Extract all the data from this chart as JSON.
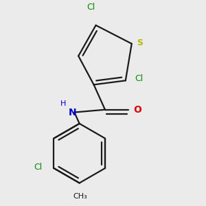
{
  "background_color": "#ebebeb",
  "bond_color": "#1a1a1a",
  "S_color": "#b8b800",
  "N_color": "#0000cc",
  "O_color": "#dd0000",
  "Cl_color": "#008800",
  "C_color": "#1a1a1a",
  "line_width": 1.6,
  "dbo": 0.018,
  "fig_width": 3.0,
  "fig_height": 3.0,
  "dpi": 100,
  "xlim": [
    0.0,
    1.0
  ],
  "ylim": [
    0.0,
    1.0
  ]
}
